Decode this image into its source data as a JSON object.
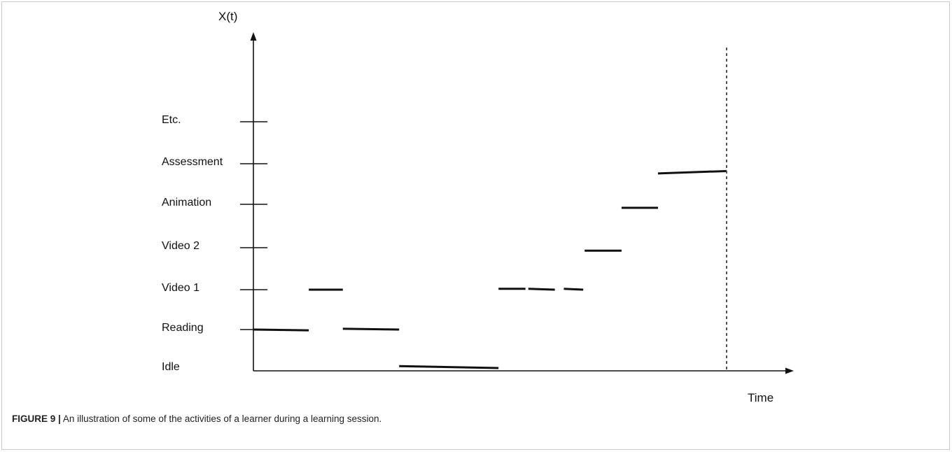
{
  "figure": {
    "caption_label": "FIGURE 9 |",
    "caption_text": "An illustration of some of the activities of a learner during a learning session."
  },
  "chart_data": {
    "type": "line",
    "ylabel": "X(t)",
    "xlabel": "Time",
    "y_categories": [
      "Idle",
      "Reading",
      "Video 1",
      "Video 2",
      "Animation",
      "Assessment",
      "Etc."
    ],
    "grid": false,
    "legend": "none",
    "session_end_marker": {
      "style": "dotted",
      "x": 1
    },
    "x_range": [
      0,
      1
    ],
    "segments": [
      {
        "state": "Reading",
        "x0": 0.0,
        "x1": 0.117,
        "y0": 1.0,
        "y1": 0.98
      },
      {
        "state": "Video 1",
        "x0": 0.117,
        "x1": 0.189,
        "y0": 2.0,
        "y1": 2.0
      },
      {
        "state": "Reading",
        "x0": 0.189,
        "x1": 0.308,
        "y0": 1.02,
        "y1": 1.0
      },
      {
        "state": "Idle",
        "x0": 0.308,
        "x1": 0.518,
        "y0": 0.05,
        "y1": 0.0
      },
      {
        "state": "Video 1",
        "x0": 0.518,
        "x1": 0.575,
        "y0": 2.02,
        "y1": 2.02
      },
      {
        "state": "Video 1",
        "x0": 0.581,
        "x1": 0.637,
        "y0": 2.02,
        "y1": 2.0
      },
      {
        "state": "Video 1",
        "x0": 0.656,
        "x1": 0.697,
        "y0": 2.02,
        "y1": 2.0
      },
      {
        "state": "Video 2",
        "x0": 0.7,
        "x1": 0.778,
        "y0": 2.93,
        "y1": 2.93
      },
      {
        "state": "Animation",
        "x0": 0.778,
        "x1": 0.855,
        "y0": 3.92,
        "y1": 3.92
      },
      {
        "state": "Assessment",
        "x0": 0.855,
        "x1": 1.0,
        "y0": 4.76,
        "y1": 4.82
      }
    ]
  }
}
